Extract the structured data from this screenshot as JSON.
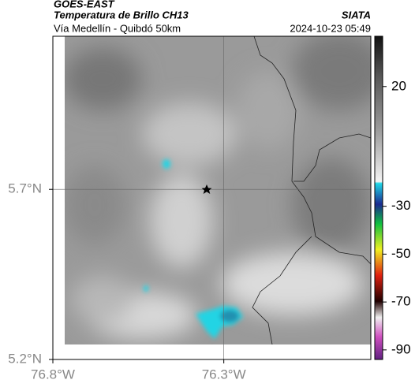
{
  "header": {
    "title": "GOES-EAST",
    "subtitle": "Temperatura de Brillo CH13",
    "source": "SIATA",
    "route": "Vía Medellín - Quibdó 50km",
    "timestamp": "2024-10-23 05:49"
  },
  "map": {
    "xlim": [
      -76.8,
      -75.87
    ],
    "ylim": [
      5.2,
      6.15
    ],
    "xticks": [
      {
        "value": -76.8,
        "label": "76.8°W"
      },
      {
        "value": -76.3,
        "label": "76.3°W"
      }
    ],
    "yticks": [
      {
        "value": 5.7,
        "label": "5.7°N"
      },
      {
        "value": 5.2,
        "label": "5.2°N"
      }
    ],
    "grid": true
  },
  "colorbar": {
    "lim": [
      41,
      -94
    ],
    "ticks": [
      20,
      -30,
      -50,
      -70,
      -90
    ]
  }
}
